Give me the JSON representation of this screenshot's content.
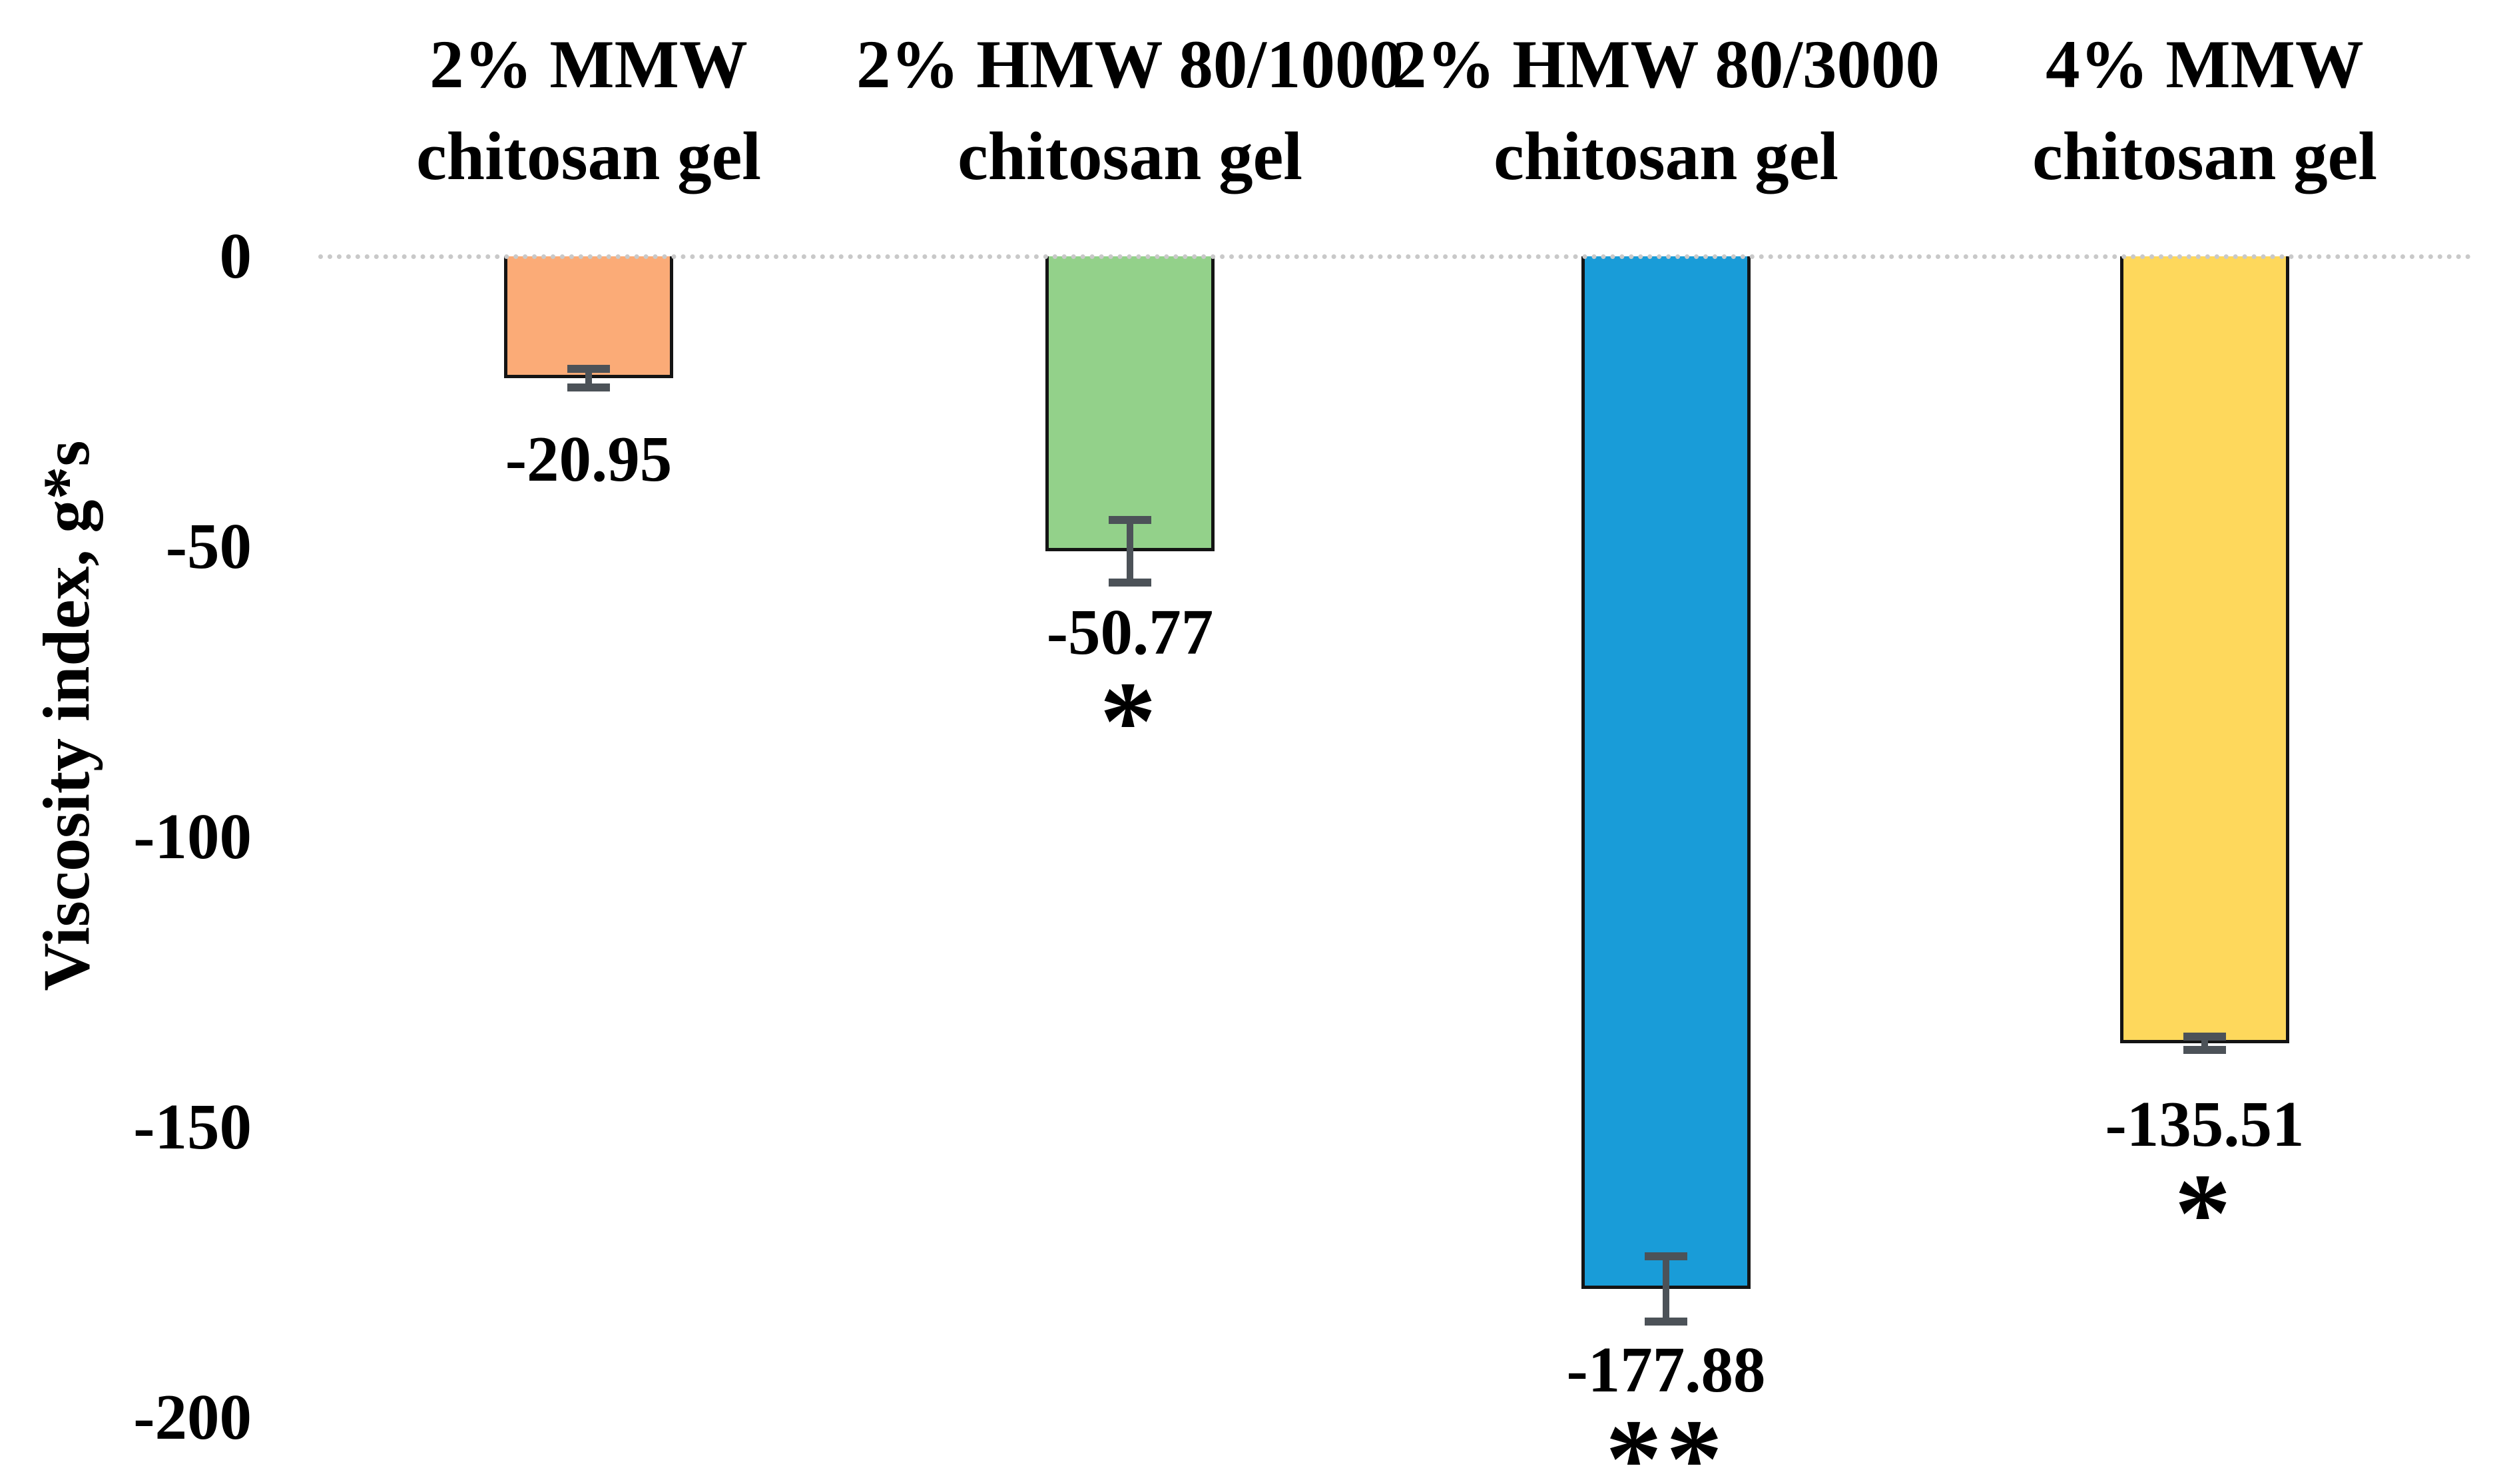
{
  "chart_data": {
    "type": "bar",
    "title": "",
    "ylabel": "Viscosity index, g*s",
    "categories": [
      "2% MMW chitosan gel",
      "2% HMW 80/1000 chitosan gel",
      "2% HMW 80/3000 chitosan gel",
      "4% MMW chitosan gel"
    ],
    "values": [
      -20.95,
      -50.77,
      -177.88,
      -135.51
    ],
    "yticks": [
      0,
      -50,
      -100,
      -150,
      -200
    ],
    "ytick_labels": [
      "0",
      "-50",
      "-100",
      "-150",
      "-200"
    ],
    "ylim": [
      -205,
      0
    ],
    "grid": false,
    "legend": false,
    "error_bar_color": "#4c5258",
    "baseline_color": "#c9c9c9",
    "bars": [
      {
        "label_line1": "2% MMW",
        "label_line2": "chitosan gel",
        "value": -20.95,
        "value_label": "-20.95",
        "significance": "",
        "error_units": 1.6,
        "color": "#fbab77"
      },
      {
        "label_line1": "2% HMW 80/1000",
        "label_line2": "chitosan gel",
        "value": -50.77,
        "value_label": "-50.77",
        "significance": "*",
        "error_units": 5.4,
        "color": "#93d18a"
      },
      {
        "label_line1": "2% HMW 80/3000",
        "label_line2": "chitosan gel",
        "value": -177.88,
        "value_label": "-177.88",
        "significance": "**",
        "error_units": 5.6,
        "color": "#199cd8"
      },
      {
        "label_line1": "4% MMW",
        "label_line2": "chitosan gel",
        "value": -135.51,
        "value_label": "-135.51",
        "significance": "*",
        "error_units": 1.2,
        "color": "#fed85c"
      }
    ]
  }
}
